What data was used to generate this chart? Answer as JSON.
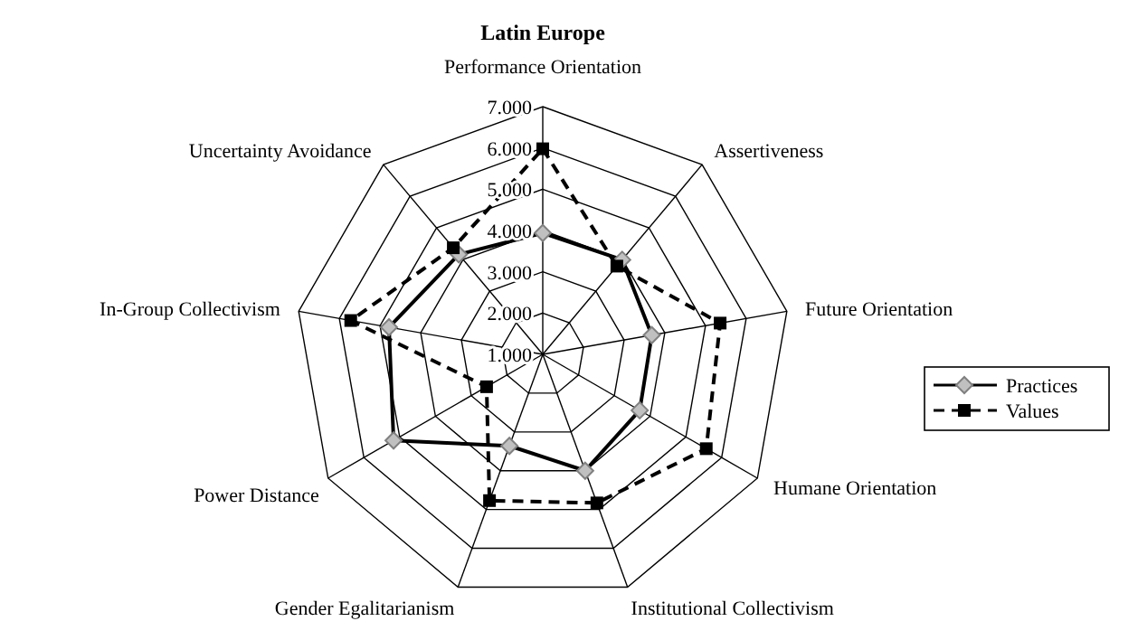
{
  "chart_data": {
    "type": "radar",
    "title": "Latin Europe",
    "categories": [
      "Performance Orientation",
      "Assertiveness",
      "Future Orientation",
      "Humane Orientation",
      "Institutional Collectivism",
      "Gender Egalitarianism",
      "Power Distance",
      "In-Group Collectivism",
      "Uncertainty Avoidance"
    ],
    "series": [
      {
        "name": "Practices",
        "color": "#000000",
        "marker": "diamond",
        "line_style": "solid",
        "values": [
          3.94,
          3.99,
          3.68,
          3.71,
          4.0,
          3.36,
          5.17,
          4.78,
          4.16
        ]
      },
      {
        "name": "Values",
        "color": "#000000",
        "marker": "square",
        "line_style": "dashed",
        "values": [
          5.98,
          3.79,
          5.36,
          5.57,
          4.83,
          4.77,
          2.57,
          5.72,
          4.37
        ]
      }
    ],
    "ylim": [
      1,
      7
    ],
    "yticks": [
      {
        "value": 1,
        "label": "1.000"
      },
      {
        "value": 2,
        "label": "2.000"
      },
      {
        "value": 3,
        "label": "3.000"
      },
      {
        "value": 4,
        "label": "4.000"
      },
      {
        "value": 5,
        "label": "5.000"
      },
      {
        "value": 6,
        "label": "6.000"
      },
      {
        "value": 7,
        "label": "7.000"
      }
    ],
    "grid": true,
    "legend": "right"
  }
}
